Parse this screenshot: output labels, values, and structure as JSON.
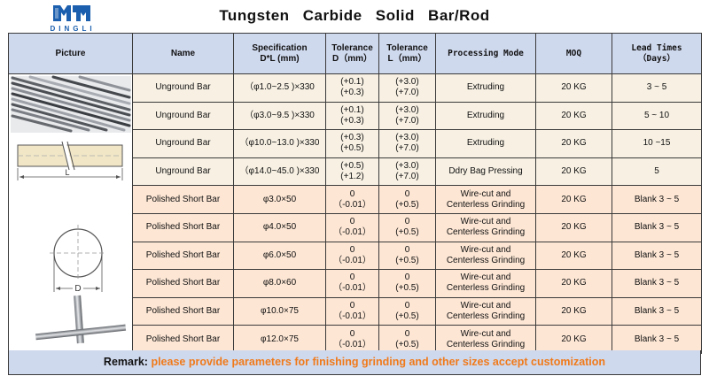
{
  "brand": {
    "logo_text": "DINGLI",
    "color": "#1b5fae"
  },
  "title": "Tungsten Carbide Solid Bar/Rod",
  "headers": {
    "picture": "Picture",
    "name": "Name",
    "spec": [
      "Specification",
      "D*L (mm)"
    ],
    "tol_d": [
      "Tolerance",
      "D（mm）"
    ],
    "tol_l": [
      "Tolerance",
      "L（mm）"
    ],
    "mode": "Processing Mode",
    "moq": "MOQ",
    "lead": [
      "Lead Times",
      "（Days）"
    ]
  },
  "rows": [
    {
      "name": "Unground Bar",
      "spec": "（φ1.0~2.5 )×330",
      "tol_d": [
        "(+0.1)",
        "(+0.3)"
      ],
      "tol_l": [
        "(+3.0)",
        "(+7.0)"
      ],
      "mode": [
        "Extruding"
      ],
      "moq": "20 KG",
      "lead": "3 ~ 5"
    },
    {
      "name": "Unground Bar",
      "spec": "（φ3.0~9.5 )×330",
      "tol_d": [
        "(+0.1)",
        "(+0.3)"
      ],
      "tol_l": [
        "(+3.0)",
        "(+7.0)"
      ],
      "mode": [
        "Extruding"
      ],
      "moq": "20 KG",
      "lead": "5 ~ 10"
    },
    {
      "name": "Unground Bar",
      "spec": "（φ10.0~13.0 )×330",
      "tol_d": [
        "(+0.3)",
        "(+0.5)"
      ],
      "tol_l": [
        "(+3.0)",
        "(+7.0)"
      ],
      "mode": [
        "Extruding"
      ],
      "moq": "20 KG",
      "lead": "10 ~15"
    },
    {
      "name": "Unground Bar",
      "spec": "（φ14.0~45.0 )×330",
      "tol_d": [
        "(+0.5)",
        "(+1.2)"
      ],
      "tol_l": [
        "(+3.0)",
        "(+7.0)"
      ],
      "mode": [
        "Ddry Bag Pressing"
      ],
      "moq": "20 KG",
      "lead": "5"
    },
    {
      "name": "Polished Short Bar",
      "spec": "φ3.0×50",
      "tol_d": [
        "0",
        "（-0.01）"
      ],
      "tol_l": [
        "0",
        "(+0.5)"
      ],
      "mode": [
        "Wire-cut and",
        "Centerless Grinding"
      ],
      "moq": "20 KG",
      "lead": "Blank  3 ~ 5"
    },
    {
      "name": "Polished Short Bar",
      "spec": "φ4.0×50",
      "tol_d": [
        "0",
        "（-0.01）"
      ],
      "tol_l": [
        "0",
        "(+0.5)"
      ],
      "mode": [
        "Wire-cut and",
        "Centerless Grinding"
      ],
      "moq": "20 KG",
      "lead": "Blank  3 ~ 5"
    },
    {
      "name": "Polished Short Bar",
      "spec": "φ6.0×50",
      "tol_d": [
        "0",
        "（-0.01）"
      ],
      "tol_l": [
        "0",
        "(+0.5)"
      ],
      "mode": [
        "Wire-cut and",
        "Centerless Grinding"
      ],
      "moq": "20 KG",
      "lead": "Blank  3 ~ 5"
    },
    {
      "name": "Polished Short Bar",
      "spec": "φ8.0×60",
      "tol_d": [
        "0",
        "（-0.01）"
      ],
      "tol_l": [
        "0",
        "(+0.5)"
      ],
      "mode": [
        "Wire-cut and",
        "Centerless Grinding"
      ],
      "moq": "20 KG",
      "lead": "Blank  3 ~ 5"
    },
    {
      "name": "Polished Short Bar",
      "spec": "φ10.0×75",
      "tol_d": [
        "0",
        "（-0.01）"
      ],
      "tol_l": [
        "0",
        "(+0.5)"
      ],
      "mode": [
        "Wire-cut and",
        "Centerless Grinding"
      ],
      "moq": "20 KG",
      "lead": "Blank  3 ~ 5"
    },
    {
      "name": "Polished Short Bar",
      "spec": "φ12.0×75",
      "tol_d": [
        "0",
        "（-0.01）"
      ],
      "tol_l": [
        "0",
        "(+0.5)"
      ],
      "mode": [
        "Wire-cut and",
        "Centerless Grinding"
      ],
      "moq": "20 KG",
      "lead": "Blank  3 ~ 5"
    }
  ],
  "drawing_labels": {
    "length": "L",
    "diameter": "D"
  },
  "remark": {
    "label": "Remark:",
    "text": "please provide parameters for finishing grinding  and other sizes accept customization",
    "color": "#f07a1a"
  },
  "colors": {
    "header_bg": "#cfd9ee",
    "row_bg": "#f7f0e3",
    "polished_bg": "#fde6d4"
  }
}
